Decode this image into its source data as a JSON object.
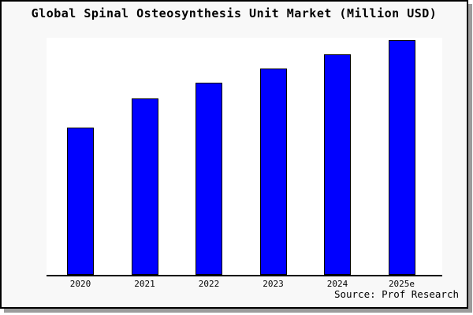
{
  "window": {
    "background": "#f8f8f8",
    "border_color": "#000000",
    "shadow_color": "#9b9b9b"
  },
  "chart_data": {
    "type": "bar",
    "title": "Global Spinal Osteosynthesis Unit Market (Million USD)",
    "categories": [
      "2020",
      "2021",
      "2022",
      "2023",
      "2024",
      "2025e"
    ],
    "values": [
      62.8,
      75.2,
      81.9,
      87.9,
      94,
      100
    ],
    "value_note": "no y-axis ticks shown; values estimated relative to 2025e = 100",
    "ylim": [
      0,
      101
    ],
    "xlabel": "",
    "ylabel": "",
    "grid": false,
    "legend": false,
    "bar_color": "#0000ff",
    "bar_border_color": "#000000",
    "plot_background": "#ffffff",
    "source": "Source: Prof Research"
  }
}
